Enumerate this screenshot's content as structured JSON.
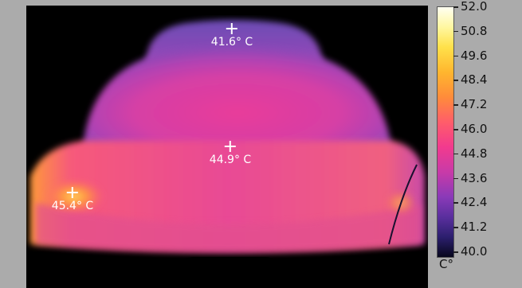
{
  "thermal_image": {
    "markers": [
      {
        "id": "top",
        "label": "41.6° C"
      },
      {
        "id": "center",
        "label": "44.9° C"
      },
      {
        "id": "left",
        "label": "45.4° C"
      }
    ]
  },
  "scale": {
    "unit": "C°",
    "ticks": [
      "52.0",
      "50.8",
      "49.6",
      "48.4",
      "47.2",
      "46.0",
      "44.8",
      "43.6",
      "42.4",
      "41.2",
      "40.0"
    ],
    "max": 52.0,
    "min": 40.0
  },
  "colors": {
    "background": "#ababab",
    "image_background": "#000000"
  }
}
